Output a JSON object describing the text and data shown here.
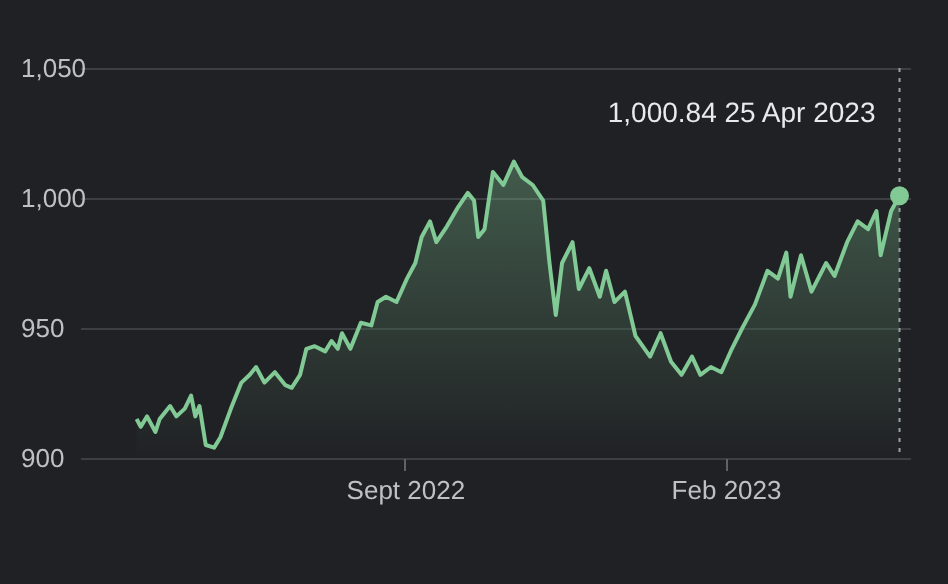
{
  "chart_data": {
    "type": "area",
    "x": [
      "2022-04-26",
      "2022-04-28",
      "2022-05-01",
      "2022-05-05",
      "2022-05-07",
      "2022-05-12",
      "2022-05-15",
      "2022-05-19",
      "2022-05-22",
      "2022-05-24",
      "2022-05-26",
      "2022-05-29",
      "2022-06-02",
      "2022-06-05",
      "2022-06-10",
      "2022-06-15",
      "2022-06-19",
      "2022-06-22",
      "2022-06-26",
      "2022-07-01",
      "2022-07-06",
      "2022-07-09",
      "2022-07-13",
      "2022-07-16",
      "2022-07-20",
      "2022-07-25",
      "2022-07-28",
      "2022-07-31",
      "2022-08-02",
      "2022-08-06",
      "2022-08-11",
      "2022-08-16",
      "2022-08-19",
      "2022-08-23",
      "2022-08-28",
      "2022-09-02",
      "2022-09-06",
      "2022-09-09",
      "2022-09-13",
      "2022-09-16",
      "2022-09-21",
      "2022-09-26",
      "2022-10-01",
      "2022-10-04",
      "2022-10-06",
      "2022-10-09",
      "2022-10-13",
      "2022-10-18",
      "2022-10-23",
      "2022-10-27",
      "2022-11-01",
      "2022-11-06",
      "2022-11-09",
      "2022-11-12",
      "2022-11-15",
      "2022-11-20",
      "2022-11-23",
      "2022-11-28",
      "2022-12-03",
      "2022-12-06",
      "2022-12-10",
      "2022-12-15",
      "2022-12-20",
      "2022-12-27",
      "2023-01-01",
      "2023-01-06",
      "2023-01-11",
      "2023-01-16",
      "2023-01-20",
      "2023-01-25",
      "2023-01-30",
      "2023-02-04",
      "2023-02-09",
      "2023-02-15",
      "2023-02-21",
      "2023-02-26",
      "2023-03-02",
      "2023-03-04",
      "2023-03-09",
      "2023-03-14",
      "2023-03-21",
      "2023-03-25",
      "2023-03-31",
      "2023-04-05",
      "2023-04-10",
      "2023-04-14",
      "2023-04-16",
      "2023-04-21",
      "2023-04-25"
    ],
    "series": [
      {
        "color": "#81c995",
        "values": [
          915,
          912,
          916,
          910,
          915,
          920,
          916,
          919,
          924,
          916,
          920,
          905,
          904,
          908,
          919,
          929,
          932,
          935,
          929,
          933,
          928,
          927,
          932,
          942,
          943,
          941,
          945,
          942,
          948,
          942,
          952,
          951,
          960,
          962,
          960,
          969,
          975,
          985,
          991,
          983,
          989,
          996,
          1002,
          999,
          985,
          988,
          1010,
          1005,
          1014,
          1008,
          1005,
          999,
          975,
          955,
          975,
          983,
          965,
          973,
          962,
          972,
          960,
          964,
          947,
          939,
          948,
          937,
          932,
          939,
          932,
          935,
          933,
          942,
          950,
          959,
          972,
          969,
          979,
          962,
          978,
          964,
          975,
          970,
          983,
          991,
          988,
          995,
          978,
          995,
          1000.84
        ]
      }
    ],
    "xlim": [
      "2022-03-30",
      "2023-04-30"
    ],
    "xticks": [
      {
        "value": "2022-09-01",
        "label": "Sept 2022"
      },
      {
        "value": "2023-02-01",
        "label": "Feb 2023"
      }
    ],
    "ylim": [
      900,
      1050
    ],
    "yticks": [
      {
        "value": 900,
        "label": "900"
      },
      {
        "value": 950,
        "label": "950"
      },
      {
        "value": 1000,
        "label": "1,000"
      },
      {
        "value": 1050,
        "label": "1,050"
      }
    ],
    "grid": "y",
    "ref_lines": [
      {
        "axis": "x",
        "value": "2023-04-25",
        "line_style": "dotted",
        "color": "#9aa0a6"
      }
    ],
    "annotations": [
      {
        "text": "1,000.84  25 Apr 2023",
        "x": "2023-04-25",
        "y": 1000.84
      }
    ]
  }
}
